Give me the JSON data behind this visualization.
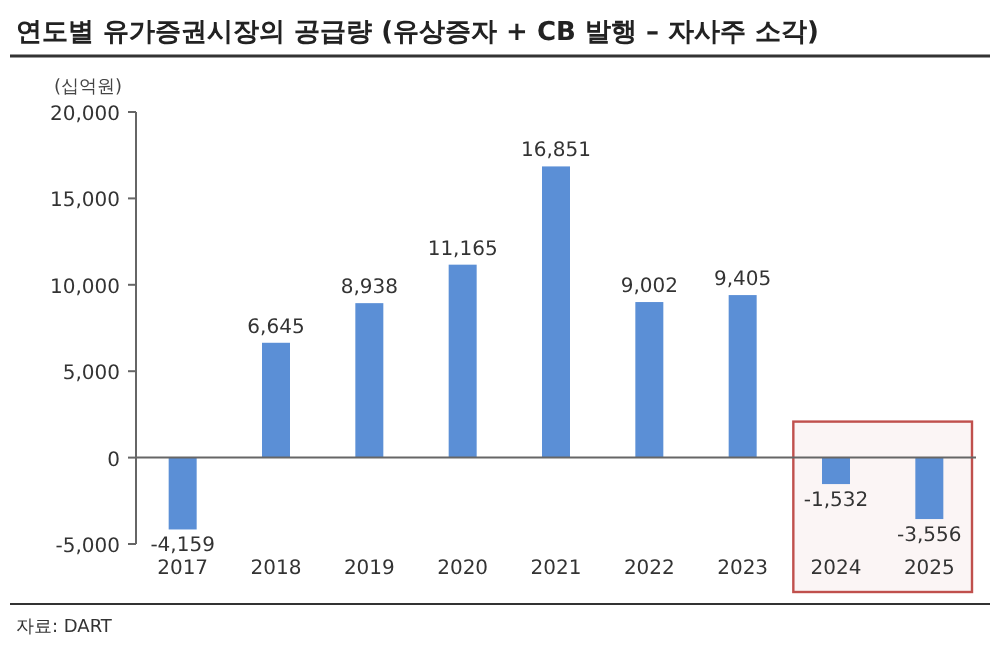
{
  "chart_data": {
    "type": "bar",
    "title": "연도별 유가증권시장의 공급량 (유상증자 + CB 발행 – 자사주 소각)",
    "ylabel": "(십억원)",
    "categories": [
      "2017",
      "2018",
      "2019",
      "2020",
      "2021",
      "2022",
      "2023",
      "2024",
      "2025"
    ],
    "values": [
      -4159,
      6645,
      8938,
      11165,
      16851,
      9002,
      9405,
      -1532,
      -3556
    ],
    "value_labels": [
      "-4,159",
      "6,645",
      "8,938",
      "11,165",
      "16,851",
      "9,002",
      "9,405",
      "-1,532",
      "-3,556"
    ],
    "color": "#5b8fd6",
    "ylim": [
      -5000,
      20000
    ],
    "yticks": [
      {
        "value": -5000,
        "label": "-5,000"
      },
      {
        "value": 0,
        "label": "0"
      },
      {
        "value": 5000,
        "label": "5,000"
      },
      {
        "value": 10000,
        "label": "10,000"
      },
      {
        "value": 15000,
        "label": "15,000"
      },
      {
        "value": 20000,
        "label": "20,000"
      }
    ],
    "bands": [
      {
        "axis": "x",
        "from": "2024",
        "to": "2025",
        "color": "#c0504d"
      }
    ],
    "annotations": [
      "자료: DART"
    ]
  }
}
